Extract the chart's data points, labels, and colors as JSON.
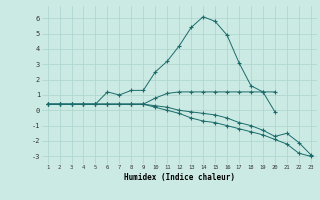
{
  "x": [
    1,
    2,
    3,
    4,
    5,
    6,
    7,
    8,
    9,
    10,
    11,
    12,
    13,
    14,
    15,
    16,
    17,
    18,
    19,
    20,
    21,
    22,
    23
  ],
  "line1": [
    0.4,
    0.4,
    0.4,
    0.4,
    0.4,
    1.2,
    1.0,
    1.3,
    1.3,
    2.5,
    3.2,
    4.2,
    5.4,
    6.1,
    5.8,
    4.9,
    3.1,
    1.6,
    1.2,
    -0.1,
    null,
    null,
    null
  ],
  "line2": [
    0.4,
    0.4,
    0.4,
    0.4,
    0.4,
    0.4,
    0.4,
    0.4,
    0.4,
    0.8,
    1.1,
    1.2,
    1.2,
    1.2,
    1.2,
    1.2,
    1.2,
    1.2,
    1.2,
    1.2,
    null,
    null,
    null
  ],
  "line3": [
    0.4,
    0.4,
    0.4,
    0.4,
    0.4,
    0.4,
    0.4,
    0.4,
    0.4,
    0.2,
    0.0,
    -0.2,
    -0.5,
    -0.7,
    -0.8,
    -1.0,
    -1.2,
    -1.4,
    -1.6,
    -1.9,
    -2.2,
    -2.8,
    -3.0
  ],
  "line4": [
    0.4,
    0.4,
    0.4,
    0.4,
    0.4,
    0.4,
    0.4,
    0.4,
    0.4,
    0.3,
    0.2,
    0.0,
    -0.1,
    -0.2,
    -0.3,
    -0.5,
    -0.8,
    -1.0,
    -1.3,
    -1.7,
    -1.5,
    -2.1,
    -2.9
  ],
  "bg_color": "#cceae4",
  "line_color": "#1a6b6b",
  "grid_color": "#aad4cc",
  "xlabel": "Humidex (Indice chaleur)",
  "ylim": [
    -3.5,
    6.8
  ],
  "xlim": [
    0.5,
    23.5
  ],
  "yticks": [
    -3,
    -2,
    -1,
    0,
    1,
    2,
    3,
    4,
    5,
    6
  ],
  "xticks": [
    1,
    2,
    3,
    4,
    5,
    6,
    7,
    8,
    9,
    10,
    11,
    12,
    13,
    14,
    15,
    16,
    17,
    18,
    19,
    20,
    21,
    22,
    23
  ]
}
